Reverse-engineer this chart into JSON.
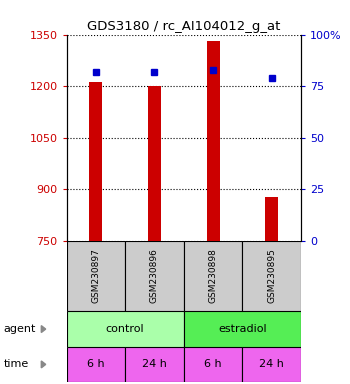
{
  "title": "GDS3180 / rc_AI104012_g_at",
  "samples": [
    "GSM230897",
    "GSM230896",
    "GSM230898",
    "GSM230895"
  ],
  "counts": [
    1213,
    1201,
    1330,
    878
  ],
  "percentiles": [
    82,
    82,
    83,
    79
  ],
  "ylim_left": [
    750,
    1350
  ],
  "ylim_right": [
    0,
    100
  ],
  "yticks_left": [
    750,
    900,
    1050,
    1200,
    1350
  ],
  "yticks_right": [
    0,
    25,
    50,
    75,
    100
  ],
  "bar_color": "#cc0000",
  "dot_color": "#0000cc",
  "agent_colors": [
    "#aaffaa",
    "#55ee55"
  ],
  "time_labels": [
    "6 h",
    "24 h",
    "6 h",
    "24 h"
  ],
  "time_color": "#ee66ee",
  "sample_box_color": "#cccccc",
  "left_color": "#cc0000",
  "right_color": "#0000cc",
  "bar_width": 0.22
}
